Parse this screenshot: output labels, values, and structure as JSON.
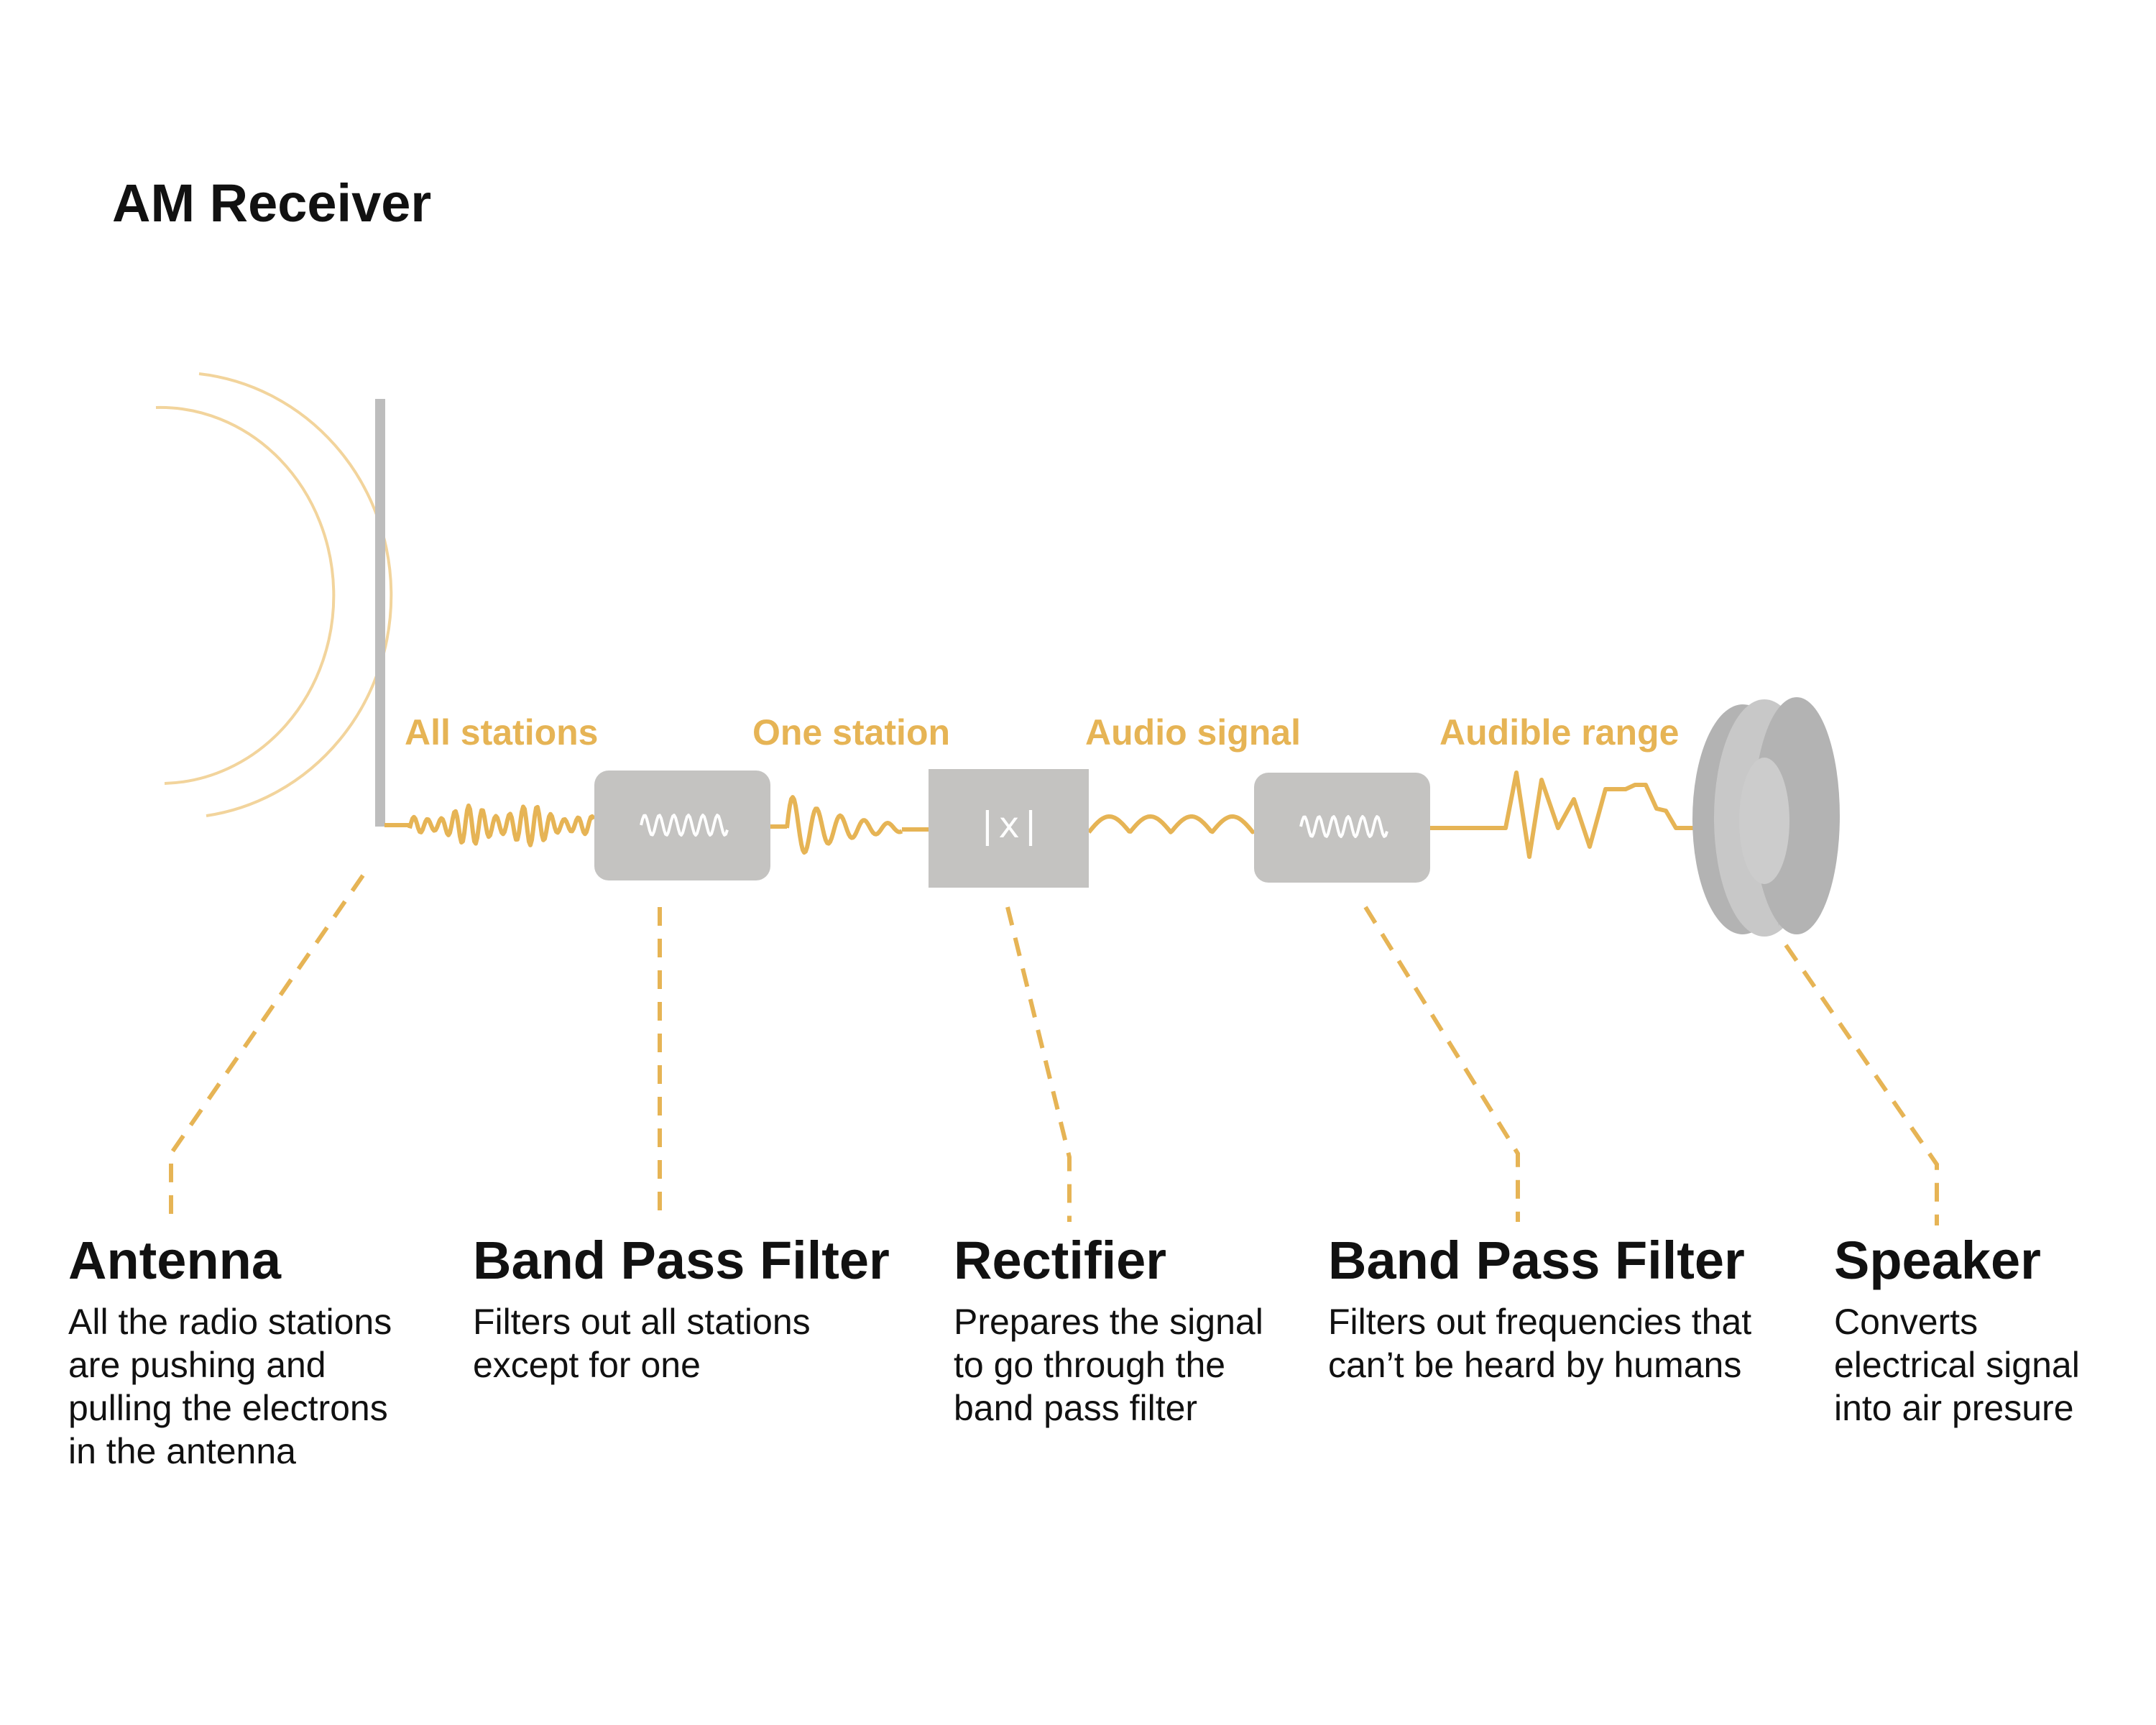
{
  "title": "AM Receiver",
  "colors": {
    "signal": "#e6b455",
    "component": "#c4c3c1",
    "antenna": "#bdbdbd",
    "speaker": "#b3b3b3",
    "text": "#111111"
  },
  "signal_labels": [
    "All stations",
    "One station",
    "Audio signal",
    "Audible range"
  ],
  "components": [
    {
      "icon": "wave-icon",
      "glyph": ""
    },
    {
      "icon": "absolute-value-icon",
      "glyph": "|x|"
    },
    {
      "icon": "wave-icon",
      "glyph": ""
    }
  ],
  "descriptions": [
    {
      "heading": "Antenna",
      "lines": [
        "All the radio stations",
        "are pushing and",
        "pulling the electrons",
        "in the antenna"
      ]
    },
    {
      "heading": "Band Pass Filter",
      "lines": [
        "Filters out all stations",
        "except for one"
      ]
    },
    {
      "heading": "Rectifier",
      "lines": [
        "Prepares the signal",
        "to go through the",
        "band pass filter"
      ]
    },
    {
      "heading": "Band Pass Filter",
      "lines": [
        "Filters out frequencies that",
        "can’t be heard by humans"
      ]
    },
    {
      "heading": "Speaker",
      "lines": [
        "Converts",
        "electrical signal",
        "into air presure"
      ]
    }
  ]
}
